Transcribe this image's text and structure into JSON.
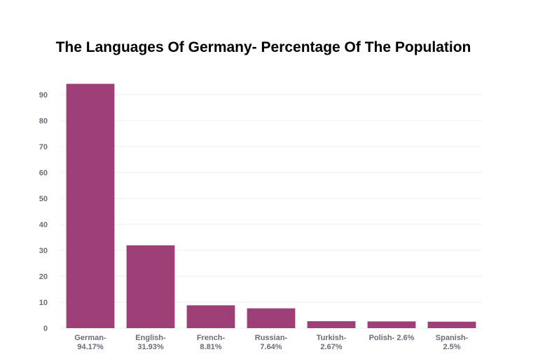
{
  "chart_data": {
    "type": "bar",
    "title": "The Languages Of Germany- Percentage Of The Population",
    "categories": [
      "German-\n94.17%",
      "English-\n31.93%",
      "French-\n8.81%",
      "Russian-\n7.64%",
      "Turkish-\n2.67%",
      "Polish- 2.6%",
      "Spanish-\n2.5%"
    ],
    "values": [
      94.17,
      31.93,
      8.81,
      7.64,
      2.67,
      2.6,
      2.5
    ],
    "color": "#9e3f77",
    "ylim": [
      0,
      95
    ],
    "yticks": [
      0,
      10,
      20,
      30,
      40,
      50,
      60,
      70,
      80,
      90
    ],
    "grid": true
  }
}
